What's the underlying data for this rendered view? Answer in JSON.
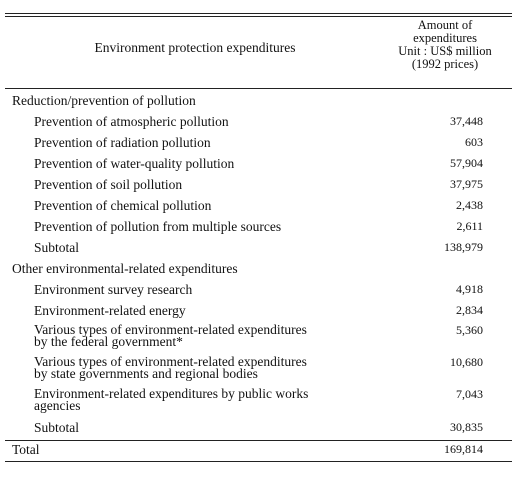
{
  "header": {
    "label": "Environment protection expenditures",
    "amount": [
      "Amount of",
      "expenditures",
      "Unit : US$ million",
      "(1992 prices)"
    ]
  },
  "sections": [
    {
      "title": "Reduction/prevention of pollution",
      "rows": [
        {
          "label": [
            "Prevention of atmospheric pollution"
          ],
          "amount": "37,448"
        },
        {
          "label": [
            "Prevention of radiation pollution"
          ],
          "amount": "603"
        },
        {
          "label": [
            "Prevention of water-quality pollution"
          ],
          "amount": "57,904"
        },
        {
          "label": [
            "Prevention of soil pollution"
          ],
          "amount": "37,975"
        },
        {
          "label": [
            "Prevention of chemical pollution"
          ],
          "amount": "2,438"
        },
        {
          "label": [
            "Prevention of pollution from multiple sources"
          ],
          "amount": "2,611"
        }
      ],
      "subtotal": {
        "label": "Subtotal",
        "amount": "138,979"
      }
    },
    {
      "title": "Other environmental-related expenditures",
      "rows": [
        {
          "label": [
            "Environment survey research"
          ],
          "amount": "4,918"
        },
        {
          "label": [
            "Environment-related energy"
          ],
          "amount": "2,834"
        },
        {
          "label": [
            "Various types of environment-related expenditures",
            "by the federal government*"
          ],
          "amount": "5,360"
        },
        {
          "label": [
            "Various types of environment-related expenditures",
            "by state governments and regional bodies"
          ],
          "amount": "10,680"
        },
        {
          "label": [
            "Environment-related expenditures by public works",
            "agencies"
          ],
          "amount": "7,043"
        }
      ],
      "subtotal": {
        "label": "Subtotal",
        "amount": "30,835"
      }
    }
  ],
  "total": {
    "label": "Total",
    "amount": "169,814"
  }
}
